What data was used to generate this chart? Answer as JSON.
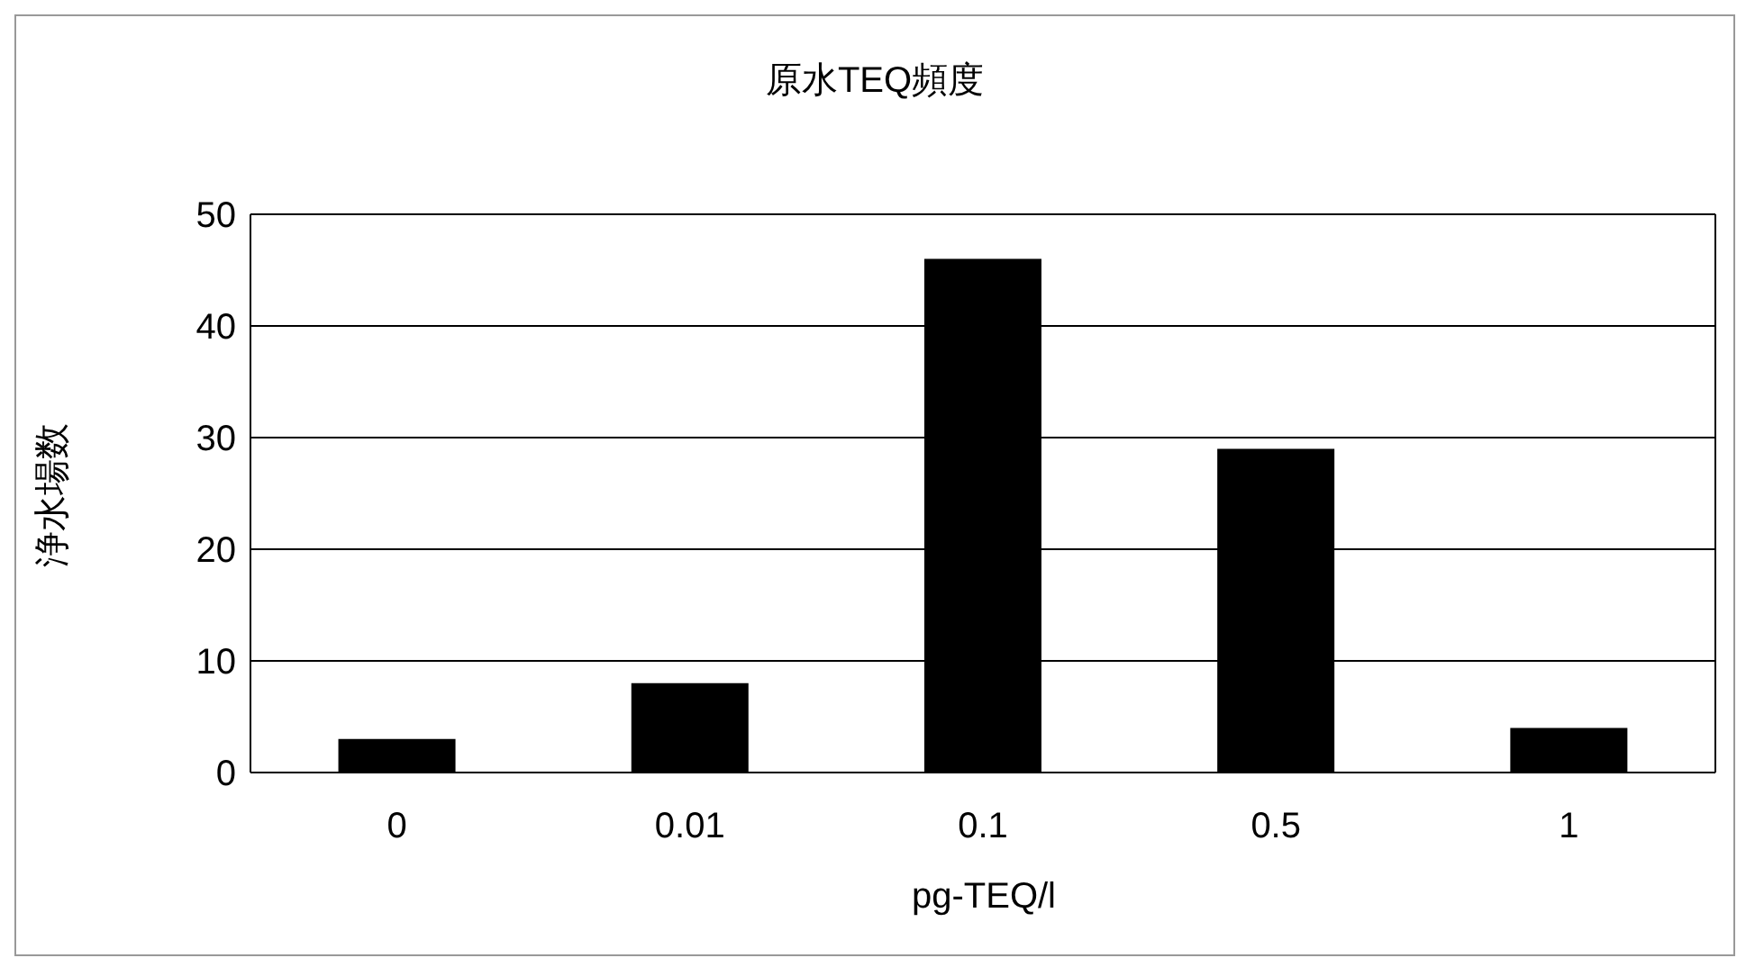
{
  "chart_data": {
    "type": "bar",
    "title": "原水TEQ頻度",
    "xlabel": "pg-TEQ/l",
    "ylabel": "浄水場数",
    "categories": [
      "0",
      "0.01",
      "0.1",
      "0.5",
      "1"
    ],
    "values": [
      3,
      8,
      46,
      29,
      4
    ],
    "color": "#000000",
    "ylim": [
      0,
      50
    ],
    "yticks": [
      0,
      10,
      20,
      30,
      40,
      50
    ],
    "grid": "y"
  }
}
